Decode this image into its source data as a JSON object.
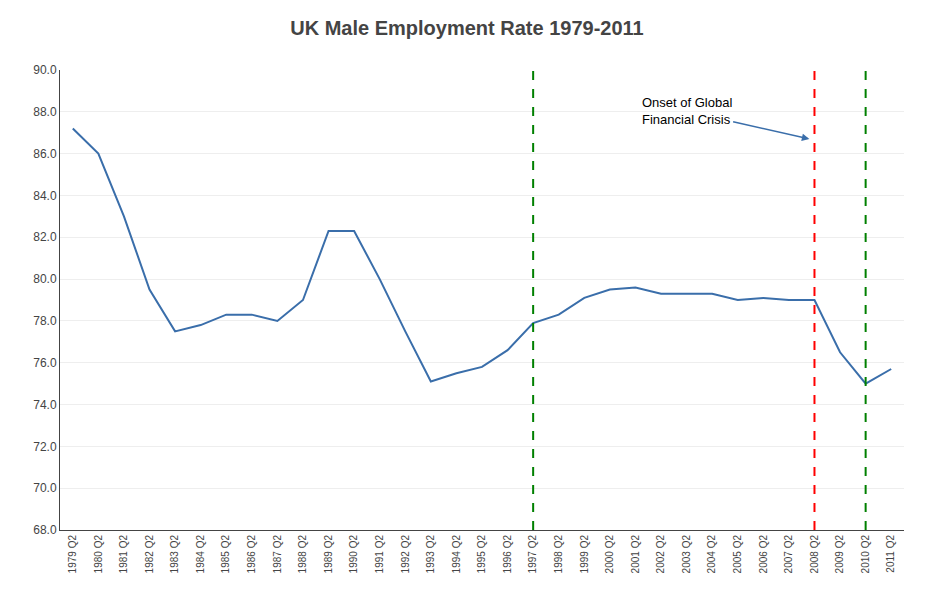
{
  "chart_data": {
    "type": "line",
    "title": "UK Male Employment Rate 1979-2011",
    "categories": [
      "1979 Q2",
      "1980 Q2",
      "1981 Q2",
      "1982 Q2",
      "1983 Q2",
      "1984 Q2",
      "1985 Q2",
      "1986 Q2",
      "1987 Q2",
      "1988 Q2",
      "1989 Q2",
      "1990 Q2",
      "1991 Q2",
      "1992 Q2",
      "1993 Q2",
      "1994 Q2",
      "1995 Q2",
      "1996 Q2",
      "1997 Q2",
      "1998 Q2",
      "1999 Q2",
      "2000 Q2",
      "2001 Q2",
      "2002 Q2",
      "2003 Q2",
      "2004 Q2",
      "2005 Q2",
      "2006 Q2",
      "2007 Q2",
      "2008 Q2",
      "2009 Q2",
      "2010 Q2",
      "2011 Q2"
    ],
    "values": [
      87.2,
      86.0,
      83.0,
      79.5,
      77.5,
      77.8,
      78.3,
      78.3,
      78.0,
      79.0,
      82.3,
      82.3,
      80.0,
      77.5,
      75.1,
      75.5,
      75.8,
      76.6,
      77.9,
      78.3,
      79.1,
      79.5,
      79.6,
      79.3,
      79.3,
      79.3,
      79.0,
      79.1,
      79.0,
      79.0,
      76.5,
      75.0,
      75.7
    ],
    "color": "#3A6EAA",
    "ylim": [
      68.0,
      90.0
    ],
    "yticks": [
      {
        "value": 68.0,
        "label": "68.0"
      },
      {
        "value": 70.0,
        "label": "70.0"
      },
      {
        "value": 72.0,
        "label": "72.0"
      },
      {
        "value": 74.0,
        "label": "74.0"
      },
      {
        "value": 76.0,
        "label": "76.0"
      },
      {
        "value": 78.0,
        "label": "78.0"
      },
      {
        "value": 80.0,
        "label": "80.0"
      },
      {
        "value": 82.0,
        "label": "82.0"
      },
      {
        "value": 84.0,
        "label": "84.0"
      },
      {
        "value": 86.0,
        "label": "86.0"
      },
      {
        "value": 88.0,
        "label": "88.0"
      },
      {
        "value": 90.0,
        "label": "90.0"
      }
    ],
    "grid": true,
    "vlines": [
      {
        "x": "1997 Q2",
        "color": "green",
        "line_style": "dashed"
      },
      {
        "x": "2008 Q2",
        "color": "red",
        "line_style": "dashed"
      },
      {
        "x": "2010 Q2",
        "color": "green",
        "line_style": "dashed"
      }
    ],
    "annotations": [
      {
        "text": "Onset of Global\nFinancial Crisis",
        "x": "2008 Q2",
        "color": "#3A6EAA"
      }
    ]
  }
}
